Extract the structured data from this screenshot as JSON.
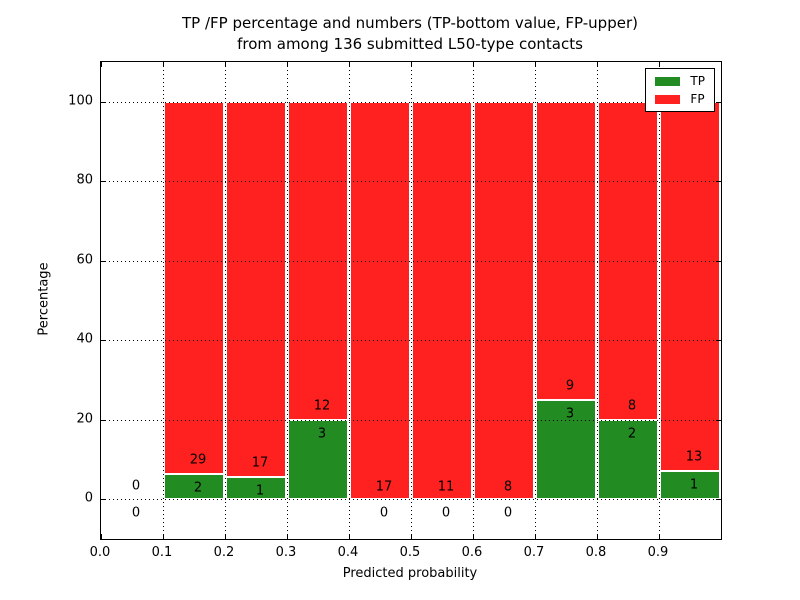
{
  "title": {
    "line1": "TP /FP percentage and numbers (TP-bottom value, FP-upper)",
    "line2": "from among 136 submitted L50-type contacts"
  },
  "axes": {
    "xlabel": "Predicted probability",
    "ylabel": "Percentage",
    "xtick_labels": [
      "0.0",
      "0.1",
      "0.2",
      "0.3",
      "0.4",
      "0.5",
      "0.6",
      "0.7",
      "0.8",
      "0.9"
    ],
    "ytick_labels": [
      "0",
      "20",
      "40",
      "60",
      "80",
      "100"
    ],
    "ytick_values": [
      0,
      20,
      40,
      60,
      80,
      100
    ],
    "ylim": [
      -10,
      110
    ],
    "xlim": [
      0,
      1
    ],
    "grid_style": "dotted"
  },
  "legend": {
    "position": "upper-right",
    "entries": [
      {
        "label": "TP",
        "color": "#228B22"
      },
      {
        "label": "FP",
        "color": "#FF2020"
      }
    ]
  },
  "chart_data": {
    "type": "bar",
    "stacked": true,
    "unit": "percent",
    "bar_total_percent": 100,
    "bin_width": 0.1,
    "total_contacts": 136,
    "categories": [
      "0.0-0.1",
      "0.1-0.2",
      "0.2-0.3",
      "0.3-0.4",
      "0.4-0.5",
      "0.5-0.6",
      "0.6-0.7",
      "0.7-0.8",
      "0.8-0.9",
      "0.9-1.0"
    ],
    "series": [
      {
        "name": "TP",
        "color": "#228B22",
        "counts": [
          0,
          2,
          1,
          3,
          0,
          0,
          0,
          3,
          2,
          1
        ]
      },
      {
        "name": "FP",
        "color": "#FF2020",
        "counts": [
          0,
          29,
          17,
          12,
          17,
          11,
          8,
          9,
          8,
          13
        ]
      }
    ],
    "tp_percent_by_bin": [
      null,
      6.45,
      5.56,
      20.0,
      0,
      0,
      0,
      25.0,
      20.0,
      7.14
    ],
    "title": "TP /FP percentage and numbers (TP-bottom value, FP-upper) from among 136 submitted L50-type contacts",
    "xlabel": "Predicted probability",
    "ylabel": "Percentage"
  }
}
